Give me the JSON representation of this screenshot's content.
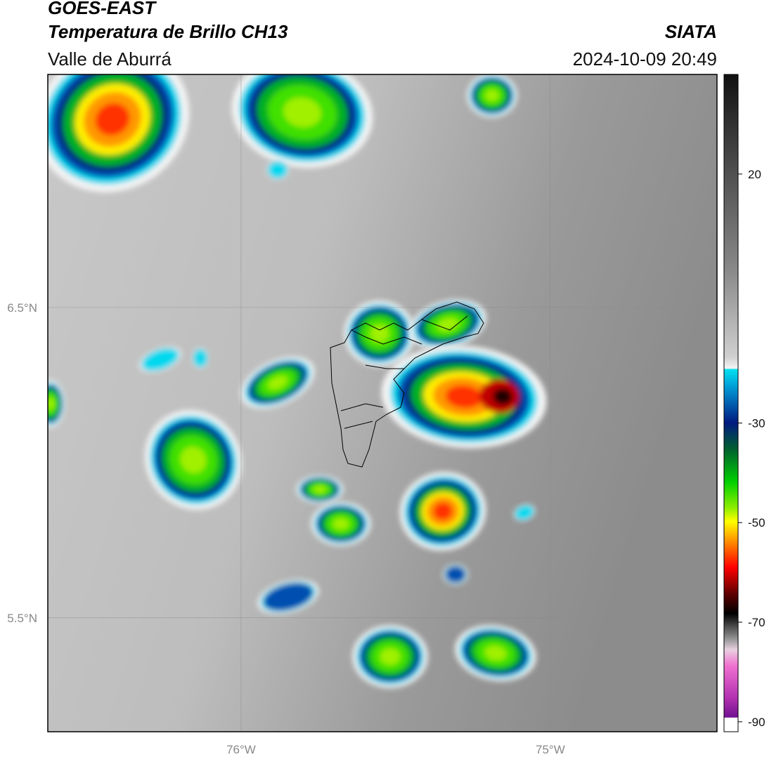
{
  "header": {
    "title": "GOES-EAST",
    "subtitle": "Temperatura de Brillo CH13",
    "region": "Valle de Aburrá",
    "source": "SIATA",
    "datetime": "2024-10-09 20:49"
  },
  "map": {
    "xlim": [
      -76.625,
      -74.461
    ],
    "ylim": [
      5.133,
      7.251
    ],
    "xticks": [
      {
        "value": -76,
        "label": "76°W"
      },
      {
        "value": -75,
        "label": "75°W"
      }
    ],
    "yticks": [
      {
        "value": 6.5,
        "label": "6.5°N"
      },
      {
        "value": 5.5,
        "label": "5.5°N"
      }
    ]
  },
  "colorbar": {
    "lim": [
      -92,
      40
    ],
    "ticks": [
      20,
      -30,
      -50,
      -70,
      -90
    ]
  }
}
